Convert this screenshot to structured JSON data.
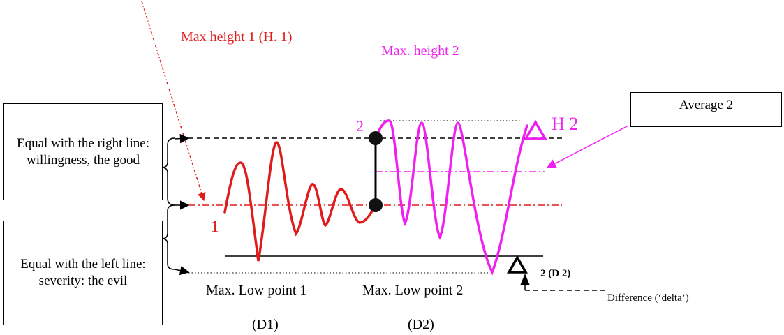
{
  "labels": {
    "max_height_1": "Max height 1 (H. 1)",
    "max_height_2": "Max. height 2",
    "average_2": "Average 2",
    "h2": "H 2",
    "point_1": "1",
    "point_2": "2",
    "box_right": "Equal with the right line: willingness, the good",
    "box_left": "Equal with the left line: severity: the evil",
    "low_1": "Max. Low point 1",
    "low_2": "Max. Low point 2",
    "d1": "(D1)",
    "d2": "(D2)",
    "d2_delta": "2 (D 2)",
    "difference": "Difference  (‘delta’)"
  },
  "colors": {
    "red": "#e01b1b",
    "magenta": "#f020f0",
    "black": "#000000"
  }
}
